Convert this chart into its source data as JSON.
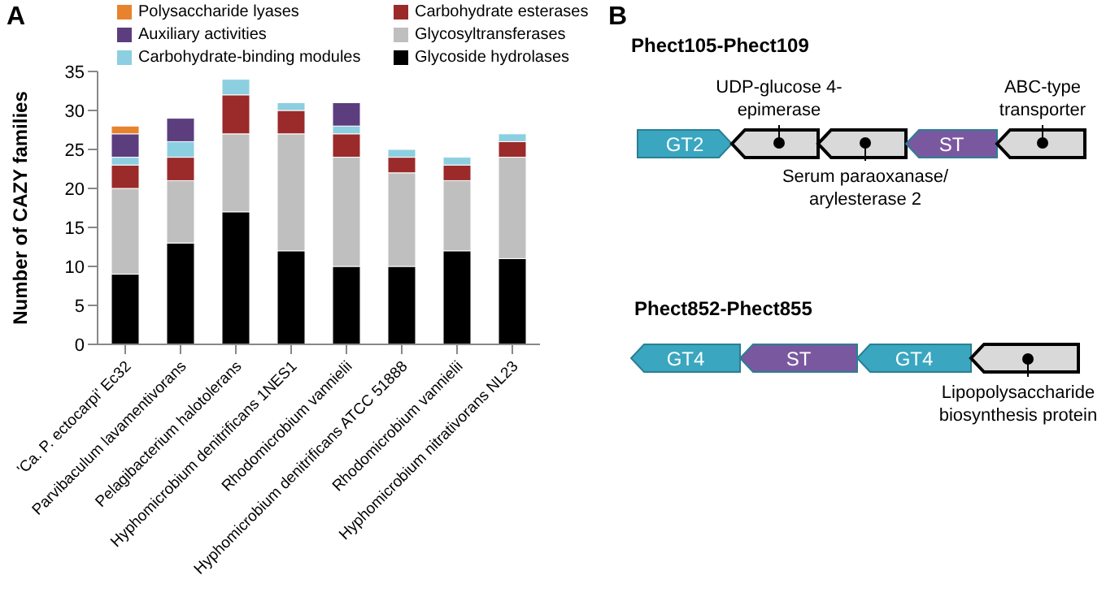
{
  "chart_data": [
    {
      "type": "bar",
      "stacked": true,
      "ylabel": "Number of CAZY families",
      "annotations": [
        "A"
      ],
      "categories": [
        "'Ca. P. ectocarpi' Ec32",
        "Parvibaculum lavamentivorans",
        "Pelagibacterium halotolerans",
        "Hyphomicrobium denitrificans 1NES1",
        "Rhodomicrobium vannielii",
        "Hyphomicrobium denitrificans ATCC 51888",
        "Rhodomicrobium vannielii",
        "Hyphomicrobium nitrativorans NL23"
      ],
      "series": [
        {
          "name": "Glycoside hydrolases",
          "color": "#000000",
          "values": [
            9,
            13,
            17,
            12,
            10,
            10,
            12,
            11
          ]
        },
        {
          "name": "Glycosyltransferases",
          "color": "#bfbfbf",
          "values": [
            11,
            8,
            10,
            15,
            14,
            12,
            9,
            13
          ]
        },
        {
          "name": "Carbohydrate esterases",
          "color": "#9b2a2a",
          "values": [
            3,
            3,
            5,
            3,
            3,
            2,
            2,
            2
          ]
        },
        {
          "name": "Carbohydrate-binding modules",
          "color": "#8ccfe0",
          "values": [
            1,
            2,
            2,
            1,
            1,
            1,
            1,
            1
          ]
        },
        {
          "name": "Auxiliary activities",
          "color": "#5c3d7e",
          "values": [
            3,
            3,
            0,
            0,
            3,
            0,
            0,
            0
          ]
        },
        {
          "name": "Polysaccharide lyases",
          "color": "#e8832d",
          "values": [
            1,
            0,
            0,
            0,
            0,
            0,
            0,
            0
          ]
        }
      ],
      "ylim": [
        0,
        35
      ],
      "yticks": [
        0,
        5,
        10,
        15,
        20,
        25,
        30,
        35
      ],
      "grid": false,
      "legend": "top"
    },
    {
      "type": "other",
      "annotations": [
        "B",
        "Phect105-Phect109",
        "GT2",
        "UDP-glucose 4-epimerase",
        "Serum paraoxanase/ arylesterase 2",
        "ST",
        "ABC-type transporter",
        "Phect852-Phect855",
        "GT4",
        "ST",
        "GT4",
        "Lipopolysaccharide biosynthesis protein"
      ]
    }
  ]
}
